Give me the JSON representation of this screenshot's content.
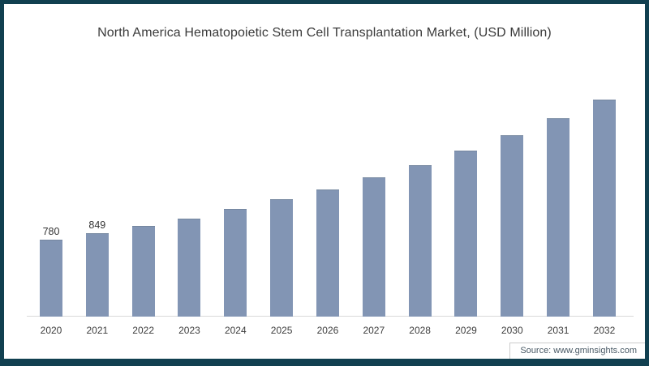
{
  "chart_data": {
    "type": "bar",
    "title": "North America Hematopoietic Stem Cell Transplantation Market, (USD Million)",
    "unit": "USD Million",
    "xlabel": "",
    "ylabel": "",
    "categories": [
      "2020",
      "2021",
      "2022",
      "2023",
      "2024",
      "2025",
      "2026",
      "2027",
      "2028",
      "2029",
      "2030",
      "2031",
      "2032"
    ],
    "values": [
      780,
      849,
      920,
      995,
      1090,
      1190,
      1290,
      1410,
      1535,
      1680,
      1840,
      2010,
      2200
    ],
    "data_labels": [
      "780",
      "849",
      "",
      "",
      "",
      "",
      "",
      "",
      "",
      "",
      "",
      "",
      ""
    ],
    "ylim": [
      0,
      2200
    ],
    "grid": false,
    "legend": false,
    "bar_color": "#8295B4"
  },
  "source": {
    "text": "Source: www.gminsights.com"
  },
  "colors": {
    "frame_border": "#114050",
    "bar_color": "#8295B4",
    "axis_line": "#D9D9D9",
    "title_text": "#3A3A3A",
    "tick_text": "#3D3D3D",
    "value_label_text": "#333333",
    "source_text": "#4A5A66"
  }
}
